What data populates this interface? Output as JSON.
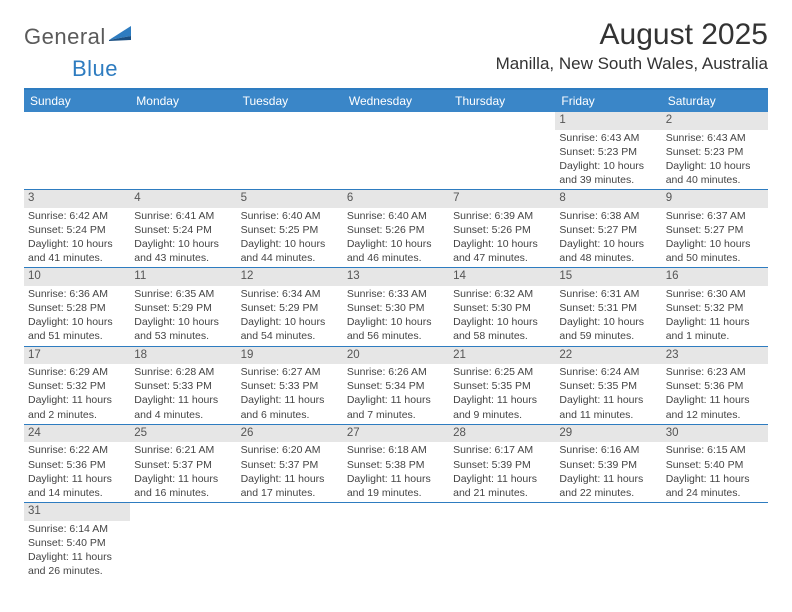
{
  "brand": {
    "part1": "General",
    "part2": "Blue"
  },
  "title": "August 2025",
  "location": "Manilla, New South Wales, Australia",
  "colors": {
    "header_bg": "#3a86c8",
    "rule": "#2e7cc0",
    "daynum_bg": "#e6e6e6",
    "text": "#444444",
    "title_text": "#333333"
  },
  "weekdays": [
    "Sunday",
    "Monday",
    "Tuesday",
    "Wednesday",
    "Thursday",
    "Friday",
    "Saturday"
  ],
  "weeks": [
    [
      {
        "n": "",
        "sunrise": "",
        "sunset": "",
        "daylight": ""
      },
      {
        "n": "",
        "sunrise": "",
        "sunset": "",
        "daylight": ""
      },
      {
        "n": "",
        "sunrise": "",
        "sunset": "",
        "daylight": ""
      },
      {
        "n": "",
        "sunrise": "",
        "sunset": "",
        "daylight": ""
      },
      {
        "n": "",
        "sunrise": "",
        "sunset": "",
        "daylight": ""
      },
      {
        "n": "1",
        "sunrise": "Sunrise: 6:43 AM",
        "sunset": "Sunset: 5:23 PM",
        "daylight": "Daylight: 10 hours and 39 minutes."
      },
      {
        "n": "2",
        "sunrise": "Sunrise: 6:43 AM",
        "sunset": "Sunset: 5:23 PM",
        "daylight": "Daylight: 10 hours and 40 minutes."
      }
    ],
    [
      {
        "n": "3",
        "sunrise": "Sunrise: 6:42 AM",
        "sunset": "Sunset: 5:24 PM",
        "daylight": "Daylight: 10 hours and 41 minutes."
      },
      {
        "n": "4",
        "sunrise": "Sunrise: 6:41 AM",
        "sunset": "Sunset: 5:24 PM",
        "daylight": "Daylight: 10 hours and 43 minutes."
      },
      {
        "n": "5",
        "sunrise": "Sunrise: 6:40 AM",
        "sunset": "Sunset: 5:25 PM",
        "daylight": "Daylight: 10 hours and 44 minutes."
      },
      {
        "n": "6",
        "sunrise": "Sunrise: 6:40 AM",
        "sunset": "Sunset: 5:26 PM",
        "daylight": "Daylight: 10 hours and 46 minutes."
      },
      {
        "n": "7",
        "sunrise": "Sunrise: 6:39 AM",
        "sunset": "Sunset: 5:26 PM",
        "daylight": "Daylight: 10 hours and 47 minutes."
      },
      {
        "n": "8",
        "sunrise": "Sunrise: 6:38 AM",
        "sunset": "Sunset: 5:27 PM",
        "daylight": "Daylight: 10 hours and 48 minutes."
      },
      {
        "n": "9",
        "sunrise": "Sunrise: 6:37 AM",
        "sunset": "Sunset: 5:27 PM",
        "daylight": "Daylight: 10 hours and 50 minutes."
      }
    ],
    [
      {
        "n": "10",
        "sunrise": "Sunrise: 6:36 AM",
        "sunset": "Sunset: 5:28 PM",
        "daylight": "Daylight: 10 hours and 51 minutes."
      },
      {
        "n": "11",
        "sunrise": "Sunrise: 6:35 AM",
        "sunset": "Sunset: 5:29 PM",
        "daylight": "Daylight: 10 hours and 53 minutes."
      },
      {
        "n": "12",
        "sunrise": "Sunrise: 6:34 AM",
        "sunset": "Sunset: 5:29 PM",
        "daylight": "Daylight: 10 hours and 54 minutes."
      },
      {
        "n": "13",
        "sunrise": "Sunrise: 6:33 AM",
        "sunset": "Sunset: 5:30 PM",
        "daylight": "Daylight: 10 hours and 56 minutes."
      },
      {
        "n": "14",
        "sunrise": "Sunrise: 6:32 AM",
        "sunset": "Sunset: 5:30 PM",
        "daylight": "Daylight: 10 hours and 58 minutes."
      },
      {
        "n": "15",
        "sunrise": "Sunrise: 6:31 AM",
        "sunset": "Sunset: 5:31 PM",
        "daylight": "Daylight: 10 hours and 59 minutes."
      },
      {
        "n": "16",
        "sunrise": "Sunrise: 6:30 AM",
        "sunset": "Sunset: 5:32 PM",
        "daylight": "Daylight: 11 hours and 1 minute."
      }
    ],
    [
      {
        "n": "17",
        "sunrise": "Sunrise: 6:29 AM",
        "sunset": "Sunset: 5:32 PM",
        "daylight": "Daylight: 11 hours and 2 minutes."
      },
      {
        "n": "18",
        "sunrise": "Sunrise: 6:28 AM",
        "sunset": "Sunset: 5:33 PM",
        "daylight": "Daylight: 11 hours and 4 minutes."
      },
      {
        "n": "19",
        "sunrise": "Sunrise: 6:27 AM",
        "sunset": "Sunset: 5:33 PM",
        "daylight": "Daylight: 11 hours and 6 minutes."
      },
      {
        "n": "20",
        "sunrise": "Sunrise: 6:26 AM",
        "sunset": "Sunset: 5:34 PM",
        "daylight": "Daylight: 11 hours and 7 minutes."
      },
      {
        "n": "21",
        "sunrise": "Sunrise: 6:25 AM",
        "sunset": "Sunset: 5:35 PM",
        "daylight": "Daylight: 11 hours and 9 minutes."
      },
      {
        "n": "22",
        "sunrise": "Sunrise: 6:24 AM",
        "sunset": "Sunset: 5:35 PM",
        "daylight": "Daylight: 11 hours and 11 minutes."
      },
      {
        "n": "23",
        "sunrise": "Sunrise: 6:23 AM",
        "sunset": "Sunset: 5:36 PM",
        "daylight": "Daylight: 11 hours and 12 minutes."
      }
    ],
    [
      {
        "n": "24",
        "sunrise": "Sunrise: 6:22 AM",
        "sunset": "Sunset: 5:36 PM",
        "daylight": "Daylight: 11 hours and 14 minutes."
      },
      {
        "n": "25",
        "sunrise": "Sunrise: 6:21 AM",
        "sunset": "Sunset: 5:37 PM",
        "daylight": "Daylight: 11 hours and 16 minutes."
      },
      {
        "n": "26",
        "sunrise": "Sunrise: 6:20 AM",
        "sunset": "Sunset: 5:37 PM",
        "daylight": "Daylight: 11 hours and 17 minutes."
      },
      {
        "n": "27",
        "sunrise": "Sunrise: 6:18 AM",
        "sunset": "Sunset: 5:38 PM",
        "daylight": "Daylight: 11 hours and 19 minutes."
      },
      {
        "n": "28",
        "sunrise": "Sunrise: 6:17 AM",
        "sunset": "Sunset: 5:39 PM",
        "daylight": "Daylight: 11 hours and 21 minutes."
      },
      {
        "n": "29",
        "sunrise": "Sunrise: 6:16 AM",
        "sunset": "Sunset: 5:39 PM",
        "daylight": "Daylight: 11 hours and 22 minutes."
      },
      {
        "n": "30",
        "sunrise": "Sunrise: 6:15 AM",
        "sunset": "Sunset: 5:40 PM",
        "daylight": "Daylight: 11 hours and 24 minutes."
      }
    ],
    [
      {
        "n": "31",
        "sunrise": "Sunrise: 6:14 AM",
        "sunset": "Sunset: 5:40 PM",
        "daylight": "Daylight: 11 hours and 26 minutes."
      },
      {
        "n": "",
        "sunrise": "",
        "sunset": "",
        "daylight": ""
      },
      {
        "n": "",
        "sunrise": "",
        "sunset": "",
        "daylight": ""
      },
      {
        "n": "",
        "sunrise": "",
        "sunset": "",
        "daylight": ""
      },
      {
        "n": "",
        "sunrise": "",
        "sunset": "",
        "daylight": ""
      },
      {
        "n": "",
        "sunrise": "",
        "sunset": "",
        "daylight": ""
      },
      {
        "n": "",
        "sunrise": "",
        "sunset": "",
        "daylight": ""
      }
    ]
  ]
}
